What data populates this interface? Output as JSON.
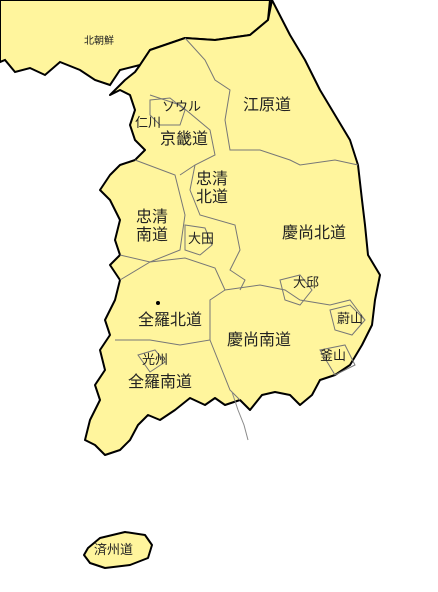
{
  "map": {
    "regions": {
      "north_korea": "北朝鮮",
      "gangwon": "江原道",
      "seoul": "ソウル",
      "incheon": "仁川",
      "gyeonggi": "京畿道",
      "chungbuk_top": "忠清",
      "chungbuk_bottom": "北道",
      "chungnam_top": "忠清",
      "chungnam_bottom": "南道",
      "daejeon": "大田",
      "gyeongbuk": "慶尚北道",
      "daegu": "大邱",
      "jeonbuk": "全羅北道",
      "gyeongnam": "慶尚南道",
      "ulsan": "蔚山",
      "busan": "釜山",
      "gwangju": "光州",
      "jeonnam": "全羅南道",
      "jeju": "済州道"
    },
    "colors": {
      "land": "#fff59d",
      "border": "#777777",
      "outline": "#000000"
    }
  }
}
